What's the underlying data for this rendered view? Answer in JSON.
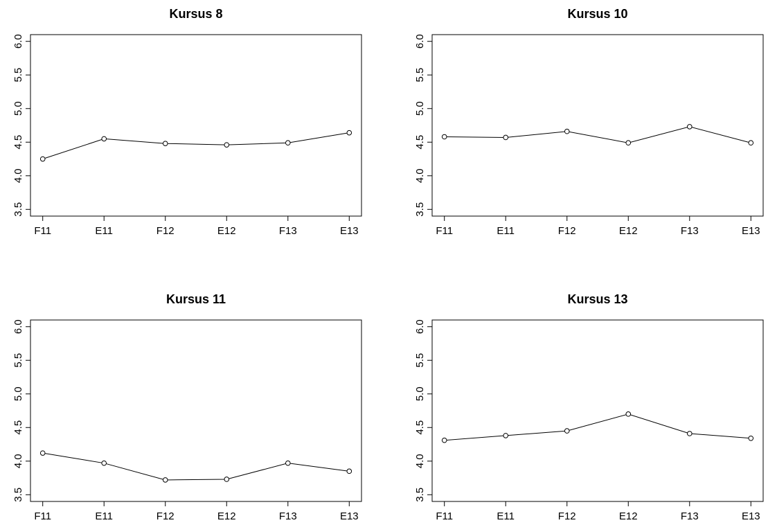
{
  "chart_data": [
    {
      "type": "line",
      "title": "Kursus 8",
      "categories": [
        "F11",
        "E11",
        "F12",
        "E12",
        "F13",
        "E13"
      ],
      "values": [
        4.25,
        4.55,
        4.48,
        4.46,
        4.49,
        4.64
      ],
      "ylim": [
        3.5,
        6.0
      ],
      "yticks": [
        "3.5",
        "4.0",
        "4.5",
        "5.0",
        "5.5",
        "6.0"
      ],
      "xlabel": "",
      "ylabel": ""
    },
    {
      "type": "line",
      "title": "Kursus 10",
      "categories": [
        "F11",
        "E11",
        "F12",
        "E12",
        "F13",
        "E13"
      ],
      "values": [
        4.58,
        4.57,
        4.66,
        4.49,
        4.73,
        4.49
      ],
      "ylim": [
        3.5,
        6.0
      ],
      "yticks": [
        "3.5",
        "4.0",
        "4.5",
        "5.0",
        "5.5",
        "6.0"
      ],
      "xlabel": "",
      "ylabel": ""
    },
    {
      "type": "line",
      "title": "Kursus 11",
      "categories": [
        "F11",
        "E11",
        "F12",
        "E12",
        "F13",
        "E13"
      ],
      "values": [
        4.12,
        3.97,
        3.72,
        3.73,
        3.97,
        3.85
      ],
      "ylim": [
        3.5,
        6.0
      ],
      "yticks": [
        "3.5",
        "4.0",
        "4.5",
        "5.0",
        "5.5",
        "6.0"
      ],
      "xlabel": "",
      "ylabel": ""
    },
    {
      "type": "line",
      "title": "Kursus 13",
      "categories": [
        "F11",
        "E11",
        "F12",
        "E12",
        "F13",
        "E13"
      ],
      "values": [
        4.31,
        4.38,
        4.45,
        4.7,
        4.41,
        4.34
      ],
      "ylim": [
        3.5,
        6.0
      ],
      "yticks": [
        "3.5",
        "4.0",
        "4.5",
        "5.0",
        "5.5",
        "6.0"
      ],
      "xlabel": "",
      "ylabel": ""
    }
  ]
}
